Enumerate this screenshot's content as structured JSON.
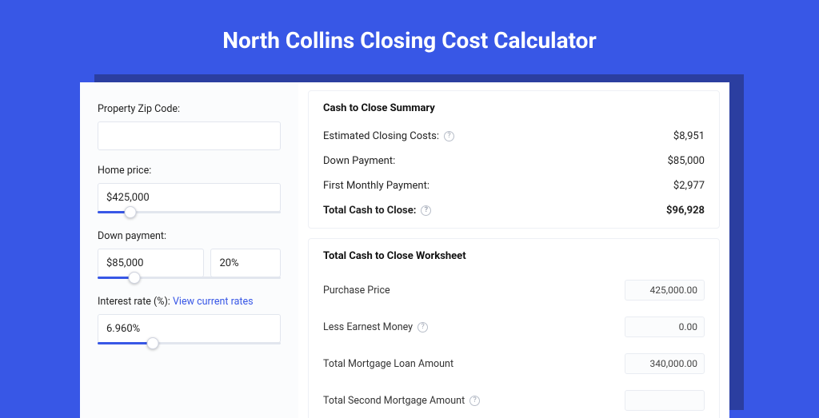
{
  "colors": {
    "page_bg": "#3857e6",
    "shadow_bg": "#2b3ea0",
    "card_bg": "#ffffff",
    "left_bg": "#fbfcfd",
    "border": "#e2e6ee",
    "accent": "#3857e6",
    "text": "#222222",
    "muted_text": "#9aa1af"
  },
  "header": {
    "title": "North Collins Closing Cost Calculator"
  },
  "form": {
    "zip": {
      "label": "Property Zip Code:",
      "value": ""
    },
    "home_price": {
      "label": "Home price:",
      "value": "$425,000",
      "slider_pct": 18
    },
    "down_payment": {
      "label": "Down payment:",
      "value": "$85,000",
      "pct": "20%",
      "slider_pct": 20
    },
    "interest_rate": {
      "label": "Interest rate (%):",
      "link_text": "View current rates",
      "value": "6.960%",
      "slider_pct": 30
    }
  },
  "summary": {
    "title": "Cash to Close Summary",
    "rows": [
      {
        "label": "Estimated Closing Costs:",
        "help": true,
        "value": "$8,951"
      },
      {
        "label": "Down Payment:",
        "help": false,
        "value": "$85,000"
      },
      {
        "label": "First Monthly Payment:",
        "help": false,
        "value": "$2,977"
      }
    ],
    "total": {
      "label": "Total Cash to Close:",
      "help": true,
      "value": "$96,928"
    }
  },
  "worksheet": {
    "title": "Total Cash to Close Worksheet",
    "rows": [
      {
        "label": "Purchase Price",
        "help": false,
        "value": "425,000.00"
      },
      {
        "label": "Less Earnest Money",
        "help": true,
        "value": "0.00"
      },
      {
        "label": "Total Mortgage Loan Amount",
        "help": false,
        "value": "340,000.00"
      },
      {
        "label": "Total Second Mortgage Amount",
        "help": true,
        "value": ""
      }
    ]
  }
}
